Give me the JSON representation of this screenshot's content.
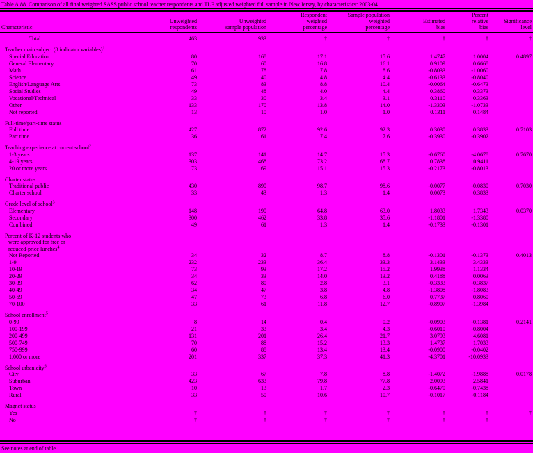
{
  "page": {
    "background": "#ff00ff",
    "text_color": "#000000",
    "rule_color": "#000000"
  },
  "title": "Table A.88. Comparison of all final weighted SASS public school teacher respondents and TLF adjusted weighted full sample in New Jersey, by characteristics: 2003-04",
  "columns": {
    "characteristic": "Characteristic",
    "headers": [
      "Unweighted\nrespondents",
      "Unweighted\nsample population",
      "Respondent\nweighted\npercentage",
      "Sample population\nweighted\npercentage",
      "Estimated\nbias",
      "Percent\nrelative\nbias",
      "Significance\nlevel"
    ],
    "widths": [
      207,
      78,
      100,
      87,
      90,
      80,
      62,
      62
    ]
  },
  "total_row": {
    "label": "Total",
    "values": [
      "463",
      "933",
      "†",
      "†",
      "†",
      "†",
      "†"
    ]
  },
  "sections": [
    {
      "heading": "Teacher main subject (8 indicator variables)",
      "sup": "1",
      "rows": [
        {
          "label": "Special Education",
          "values": [
            "80",
            "168",
            "17.1",
            "15.6",
            "1.4747",
            "1.0004",
            "0.4897"
          ]
        },
        {
          "label": "General Elementary",
          "values": [
            "70",
            "60",
            "16.8",
            "16.1",
            "0.9109",
            "0.6668",
            ""
          ]
        },
        {
          "label": "Math",
          "values": [
            "61",
            "78",
            "7.8",
            "8.6",
            "-0.8033",
            "-1.0060",
            ""
          ]
        },
        {
          "label": "Science",
          "values": [
            "49",
            "40",
            "4.8",
            "4.4",
            "-0.6133",
            "-0.8040",
            ""
          ]
        },
        {
          "label": "English/Language Arts",
          "values": [
            "73",
            "83",
            "8.8",
            "10.4",
            "-0.0064",
            "-0.6473",
            ""
          ]
        },
        {
          "label": "Social Studies",
          "values": [
            "49",
            "48",
            "4.0",
            "4.4",
            "0.3860",
            "0.3373",
            ""
          ]
        },
        {
          "label": "Vocational/Technical",
          "values": [
            "33",
            "30",
            "3.4",
            "3.1",
            "0.3110",
            "0.3363",
            ""
          ]
        },
        {
          "label": "Other",
          "values": [
            "133",
            "170",
            "13.8",
            "14.0",
            "-1.3303",
            "-1.0733",
            ""
          ]
        },
        {
          "label": "Not reported",
          "values": [
            "13",
            "10",
            "1.0",
            "1.0",
            "0.1311",
            "0.1484",
            ""
          ]
        }
      ]
    },
    {
      "heading": "Full-time/part-time status",
      "sup": "",
      "rows": [
        {
          "label": "Full time",
          "values": [
            "427",
            "872",
            "92.6",
            "92.3",
            "0.3030",
            "0.3833",
            "0.7103"
          ]
        },
        {
          "label": "Part time",
          "values": [
            "36",
            "61",
            "7.4",
            "7.6",
            "-0.3930",
            "-0.3902",
            ""
          ]
        }
      ]
    },
    {
      "heading": "Teaching experience at current school",
      "sup": "2",
      "rows": [
        {
          "label": "1-3 years",
          "values": [
            "137",
            "141",
            "14.7",
            "15.3",
            "-0.6760",
            "-4.0678",
            "0.7670"
          ]
        },
        {
          "label": "4-19 years",
          "values": [
            "303",
            "468",
            "73.2",
            "68.7",
            "0.7838",
            "0.9411",
            ""
          ]
        },
        {
          "label": "20 or more years",
          "values": [
            "73",
            "69",
            "15.1",
            "15.3",
            "-0.2173",
            "-0.8013",
            ""
          ]
        }
      ]
    },
    {
      "heading": "Charter status",
      "sup": "",
      "rows": [
        {
          "label": "Traditional public",
          "values": [
            "430",
            "890",
            "98.7",
            "98.6",
            "-0.0077",
            "-0.0830",
            "0.7030"
          ]
        },
        {
          "label": "Charter school",
          "values": [
            "33",
            "43",
            "1.3",
            "1.4",
            "0.0073",
            "0.3833",
            ""
          ]
        }
      ]
    },
    {
      "heading": "Grade level of school",
      "sup": "3",
      "rows": [
        {
          "label": "Elementary",
          "values": [
            "148",
            "190",
            "64.8",
            "63.0",
            "1.8033",
            "1.7343",
            "0.0370"
          ]
        },
        {
          "label": "Secondary",
          "values": [
            "300",
            "462",
            "33.8",
            "35.6",
            "-1.1801",
            "-1.3380",
            ""
          ]
        },
        {
          "label": "Combined",
          "values": [
            "49",
            "61",
            "1.3",
            "1.4",
            "-0.1733",
            "-0.1301",
            ""
          ]
        }
      ]
    },
    {
      "heading": "Percent of K-12 students who\nwere approved for free or\nreduced-price lunches",
      "sup": "4",
      "rows": [
        {
          "label": "Not Reported",
          "values": [
            "34",
            "32",
            "8.7",
            "8.8",
            "-0.1301",
            "-0.1373",
            "0.4013"
          ]
        },
        {
          "label": "1-9",
          "values": [
            "232",
            "233",
            "36.4",
            "33.3",
            "3.1433",
            "3.4333",
            ""
          ]
        },
        {
          "label": "10-19",
          "values": [
            "73",
            "93",
            "17.2",
            "15.2",
            "1.9938",
            "1.1334",
            ""
          ]
        },
        {
          "label": "20-29",
          "values": [
            "34",
            "33",
            "14.0",
            "13.2",
            "0.4188",
            "0.0063",
            ""
          ]
        },
        {
          "label": "30-39",
          "values": [
            "62",
            "80",
            "2.8",
            "3.1",
            "-0.3333",
            "-0.3837",
            ""
          ]
        },
        {
          "label": "40-49",
          "values": [
            "34",
            "47",
            "3.8",
            "4.8",
            "-1.3808",
            "-1.8083",
            ""
          ]
        },
        {
          "label": "50-69",
          "values": [
            "47",
            "73",
            "6.8",
            "6.0",
            "0.7737",
            "0.8060",
            ""
          ]
        },
        {
          "label": "70-100",
          "values": [
            "33",
            "61",
            "11.8",
            "12.7",
            "-0.8907",
            "-1.3984",
            ""
          ]
        }
      ]
    },
    {
      "heading": "School enrollment",
      "sup": "5",
      "rows": [
        {
          "label": "0-99",
          "values": [
            "8",
            "14",
            "0.4",
            "0.2",
            "-0.0903",
            "-0.1381",
            "0.2141"
          ]
        },
        {
          "label": "100-199",
          "values": [
            "21",
            "33",
            "3.4",
            "4.3",
            "-0.6010",
            "-0.8004",
            ""
          ]
        },
        {
          "label": "200-499",
          "values": [
            "131",
            "201",
            "26.4",
            "21.7",
            "3.0793",
            "4.6081",
            ""
          ]
        },
        {
          "label": "500-749",
          "values": [
            "70",
            "88",
            "15.2",
            "13.3",
            "1.4737",
            "1.7033",
            ""
          ]
        },
        {
          "label": "750-999",
          "values": [
            "60",
            "88",
            "13.4",
            "13.4",
            "-0.0900",
            "-0.0402",
            ""
          ]
        },
        {
          "label": "1,000 or more",
          "values": [
            "201",
            "337",
            "37.3",
            "41.3",
            "-4.3701",
            "-10.0933",
            ""
          ]
        }
      ]
    },
    {
      "heading": "School urbanicity",
      "sup": "6",
      "rows": [
        {
          "label": "City",
          "values": [
            "33",
            "67",
            "7.8",
            "8.8",
            "-1.4072",
            "-1.9888",
            "0.0178"
          ]
        },
        {
          "label": "Suburban",
          "values": [
            "423",
            "633",
            "79.8",
            "77.8",
            "2.0093",
            "2.5841",
            ""
          ]
        },
        {
          "label": "Town",
          "values": [
            "10",
            "13",
            "1.7",
            "2.3",
            "-0.6470",
            "-0.7438",
            ""
          ]
        },
        {
          "label": "Rural",
          "values": [
            "33",
            "50",
            "10.6",
            "10.7",
            "-0.1017",
            "-0.1184",
            ""
          ]
        }
      ]
    },
    {
      "heading": "Magnet status",
      "sup": "",
      "rows": [
        {
          "label": "Yes",
          "values": [
            "†",
            "†",
            "†",
            "†",
            "†",
            "†",
            "†"
          ]
        },
        {
          "label": "No",
          "values": [
            "†",
            "†",
            "†",
            "†",
            "†",
            "†",
            ""
          ]
        }
      ]
    }
  ],
  "footer": "See notes at end of table."
}
